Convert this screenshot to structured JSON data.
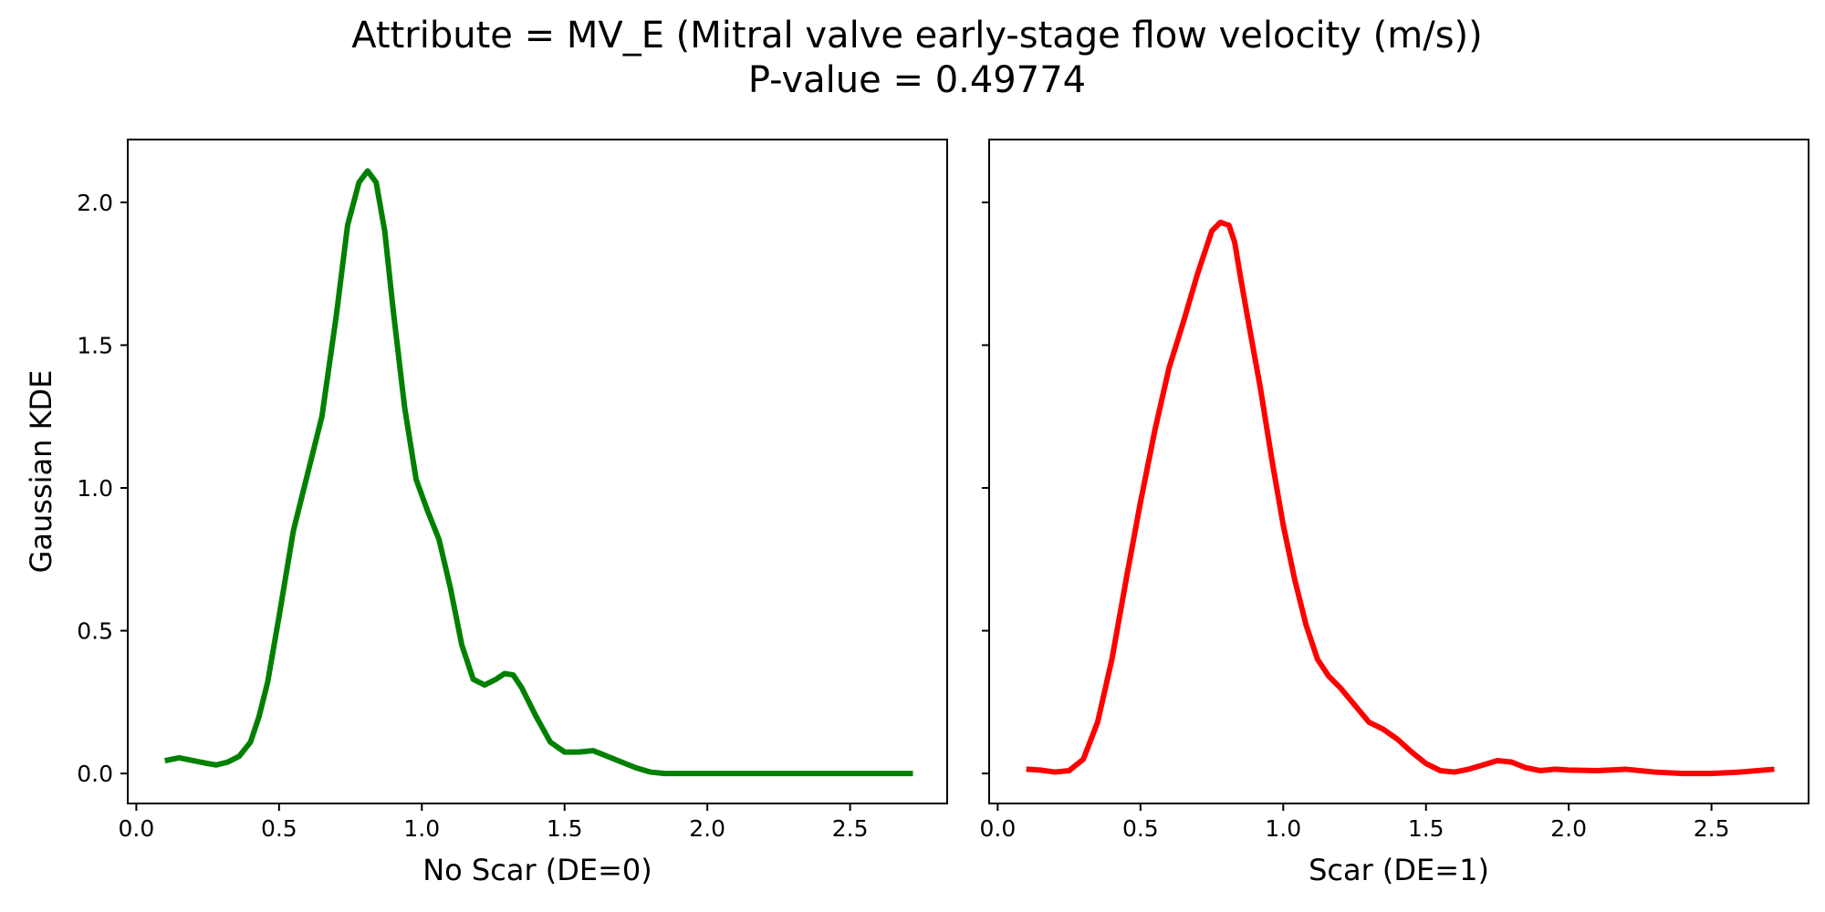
{
  "figure": {
    "title_line1": "Attribute = MV_E (Mitral valve early-stage flow velocity (m/s))",
    "title_line2": "P-value = 0.49774"
  },
  "chart_data": [
    {
      "type": "line",
      "xlabel": "No Scar (DE=0)",
      "ylabel": "Gaussian KDE",
      "xlim": [
        -0.03,
        2.84
      ],
      "ylim": [
        -0.105,
        2.22
      ],
      "xticks": [
        0.0,
        0.5,
        1.0,
        1.5,
        2.0,
        2.5
      ],
      "xtick_labels": [
        "0.0",
        "0.5",
        "1.0",
        "1.5",
        "2.0",
        "2.5"
      ],
      "yticks": [
        0.0,
        0.5,
        1.0,
        1.5,
        2.0
      ],
      "ytick_labels": [
        "0.0",
        "0.5",
        "1.0",
        "1.5",
        "2.0"
      ],
      "series": [
        {
          "color": "#008000",
          "x": [
            0.1,
            0.15,
            0.2,
            0.25,
            0.28,
            0.32,
            0.36,
            0.4,
            0.43,
            0.46,
            0.5,
            0.55,
            0.6,
            0.65,
            0.7,
            0.74,
            0.78,
            0.81,
            0.84,
            0.87,
            0.9,
            0.94,
            0.98,
            1.02,
            1.06,
            1.1,
            1.14,
            1.18,
            1.22,
            1.26,
            1.29,
            1.32,
            1.35,
            1.4,
            1.45,
            1.5,
            1.55,
            1.6,
            1.65,
            1.7,
            1.75,
            1.8,
            1.85,
            1.9,
            2.0,
            2.2,
            2.4,
            2.6,
            2.72
          ],
          "y": [
            0.045,
            0.055,
            0.045,
            0.035,
            0.03,
            0.04,
            0.06,
            0.11,
            0.2,
            0.32,
            0.55,
            0.85,
            1.05,
            1.25,
            1.6,
            1.92,
            2.07,
            2.11,
            2.07,
            1.9,
            1.62,
            1.28,
            1.03,
            0.92,
            0.82,
            0.65,
            0.45,
            0.33,
            0.31,
            0.33,
            0.35,
            0.345,
            0.3,
            0.2,
            0.11,
            0.075,
            0.075,
            0.08,
            0.06,
            0.04,
            0.02,
            0.005,
            0.0,
            0.0,
            0.0,
            0.0,
            0.0,
            0.0,
            0.0
          ]
        }
      ]
    },
    {
      "type": "line",
      "xlabel": "Scar (DE=1)",
      "ylabel": "",
      "xlim": [
        -0.03,
        2.84
      ],
      "ylim": [
        -0.105,
        2.22
      ],
      "xticks": [
        0.0,
        0.5,
        1.0,
        1.5,
        2.0,
        2.5
      ],
      "xtick_labels": [
        "0.0",
        "0.5",
        "1.0",
        "1.5",
        "2.0",
        "2.5"
      ],
      "yticks": [
        0.0,
        0.5,
        1.0,
        1.5,
        2.0
      ],
      "ytick_labels": [
        "",
        "",
        "",
        "",
        ""
      ],
      "series": [
        {
          "color": "#ff0000",
          "x": [
            0.1,
            0.15,
            0.2,
            0.25,
            0.3,
            0.35,
            0.4,
            0.45,
            0.5,
            0.55,
            0.6,
            0.65,
            0.7,
            0.75,
            0.78,
            0.81,
            0.83,
            0.85,
            0.88,
            0.92,
            0.96,
            1.0,
            1.04,
            1.08,
            1.12,
            1.16,
            1.2,
            1.25,
            1.3,
            1.35,
            1.4,
            1.45,
            1.5,
            1.55,
            1.6,
            1.65,
            1.7,
            1.75,
            1.8,
            1.85,
            1.9,
            1.95,
            2.0,
            2.1,
            2.2,
            2.3,
            2.4,
            2.5,
            2.6,
            2.72
          ],
          "y": [
            0.015,
            0.012,
            0.005,
            0.01,
            0.05,
            0.18,
            0.4,
            0.68,
            0.95,
            1.2,
            1.42,
            1.58,
            1.75,
            1.9,
            1.93,
            1.92,
            1.86,
            1.74,
            1.57,
            1.35,
            1.1,
            0.87,
            0.68,
            0.52,
            0.4,
            0.34,
            0.3,
            0.24,
            0.18,
            0.155,
            0.12,
            0.075,
            0.035,
            0.01,
            0.005,
            0.015,
            0.03,
            0.045,
            0.04,
            0.02,
            0.01,
            0.015,
            0.012,
            0.01,
            0.015,
            0.005,
            0.0,
            0.0,
            0.005,
            0.015
          ]
        }
      ]
    }
  ]
}
